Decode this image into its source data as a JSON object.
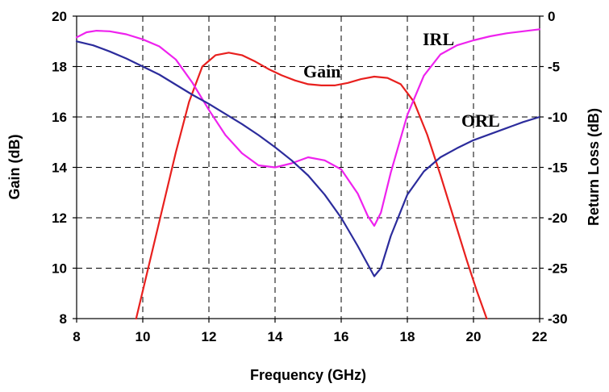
{
  "chart_data": {
    "type": "line",
    "xlabel": "Frequency (GHz)",
    "ylabel_left": "Gain (dB)",
    "ylabel_right": "Return Loss (dB)",
    "xlim": [
      8,
      22
    ],
    "ylim_left": [
      8,
      20
    ],
    "ylim_right": [
      -30,
      0
    ],
    "x_ticks": [
      "8",
      "10",
      "12",
      "14",
      "16",
      "18",
      "20",
      "22"
    ],
    "y_ticks_left": [
      "8",
      "10",
      "12",
      "14",
      "16",
      "18",
      "20"
    ],
    "y_ticks_right": [
      "-30",
      "-25",
      "-20",
      "-15",
      "-10",
      "-5",
      "0"
    ],
    "grid": true,
    "series": [
      {
        "name": "Gain",
        "axis": "left",
        "color": "#e8201e",
        "x": [
          9.8,
          10.2,
          10.6,
          11.0,
          11.4,
          11.8,
          12.2,
          12.6,
          13.0,
          13.4,
          13.8,
          14.2,
          14.6,
          15.0,
          15.4,
          15.8,
          16.2,
          16.6,
          17.0,
          17.4,
          17.8,
          18.2,
          18.6,
          19.0,
          19.4,
          19.8,
          20.1,
          20.4
        ],
        "y": [
          8.0,
          10.2,
          12.4,
          14.6,
          16.6,
          18.0,
          18.45,
          18.55,
          18.45,
          18.2,
          17.9,
          17.65,
          17.45,
          17.3,
          17.25,
          17.25,
          17.35,
          17.5,
          17.6,
          17.55,
          17.3,
          16.6,
          15.3,
          13.7,
          12.0,
          10.3,
          9.1,
          8.0
        ]
      },
      {
        "name": "IRL",
        "axis": "right",
        "color": "#ee22ee",
        "x": [
          8.0,
          8.3,
          8.6,
          9.0,
          9.5,
          10.0,
          10.5,
          11.0,
          11.5,
          12.0,
          12.5,
          13.0,
          13.5,
          14.0,
          14.5,
          15.0,
          15.5,
          16.0,
          16.5,
          16.8,
          17.0,
          17.2,
          17.5,
          18.0,
          18.5,
          19.0,
          19.5,
          20.0,
          20.5,
          21.0,
          21.5,
          22.0
        ],
        "y": [
          -2.1,
          -1.6,
          -1.45,
          -1.5,
          -1.8,
          -2.3,
          -3.0,
          -4.3,
          -6.6,
          -9.3,
          -11.8,
          -13.6,
          -14.8,
          -15.0,
          -14.6,
          -14.0,
          -14.3,
          -15.2,
          -17.6,
          -19.8,
          -20.8,
          -19.5,
          -15.5,
          -9.8,
          -5.9,
          -3.8,
          -2.9,
          -2.4,
          -2.0,
          -1.7,
          -1.5,
          -1.3
        ]
      },
      {
        "name": "ORL",
        "axis": "right",
        "color": "#2c2c9c",
        "x": [
          8.0,
          8.5,
          9.0,
          9.5,
          10.0,
          10.5,
          11.0,
          11.5,
          12.0,
          12.5,
          13.0,
          13.5,
          14.0,
          14.5,
          15.0,
          15.5,
          16.0,
          16.5,
          16.8,
          17.0,
          17.2,
          17.5,
          18.0,
          18.5,
          19.0,
          19.5,
          20.0,
          20.5,
          21.0,
          21.5,
          22.0
        ],
        "y": [
          -2.5,
          -2.9,
          -3.5,
          -4.2,
          -5.0,
          -5.8,
          -6.8,
          -7.8,
          -8.7,
          -9.7,
          -10.7,
          -11.8,
          -13.0,
          -14.3,
          -15.8,
          -17.7,
          -20.0,
          -22.8,
          -24.6,
          -25.8,
          -25.0,
          -21.8,
          -17.7,
          -15.4,
          -14.0,
          -13.1,
          -12.3,
          -11.7,
          -11.1,
          -10.5,
          -10.0
        ]
      }
    ]
  }
}
